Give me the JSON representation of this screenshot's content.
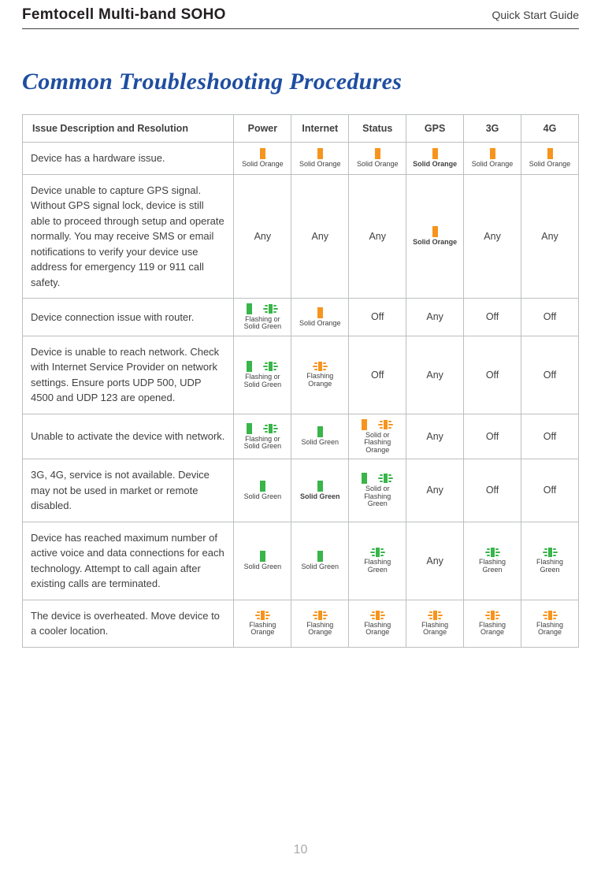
{
  "header": {
    "title": "Femtocell Multi-band SOHO",
    "sub": "Quick Start Guide"
  },
  "page_title": "Common Troubleshooting Procedures",
  "page_number": "10",
  "colors": {
    "orange": "#f7941e",
    "green": "#39b54a"
  },
  "columns": [
    "Issue Description and Resolution",
    "Power",
    "Internet",
    "Status",
    "GPS",
    "3G",
    "4G"
  ],
  "rows": [
    {
      "desc": "Device has a hardware issue.",
      "cells": [
        {
          "type": "solid",
          "color": "orange",
          "label": "Solid Orange"
        },
        {
          "type": "solid",
          "color": "orange",
          "label": "Solid Orange"
        },
        {
          "type": "solid",
          "color": "orange",
          "label": "Solid Orange"
        },
        {
          "type": "solid",
          "color": "orange",
          "label": "Solid Orange",
          "bold": true
        },
        {
          "type": "solid",
          "color": "orange",
          "label": "Solid Orange"
        },
        {
          "type": "solid",
          "color": "orange",
          "label": "Solid Orange"
        }
      ]
    },
    {
      "desc": "Device unable to capture GPS signal. Without GPS signal lock, device is still able to proceed through setup and operate normally. You may receive SMS or email notifications to verify your device use address for emergency 119 or 911 call safety.",
      "cells": [
        {
          "type": "text",
          "label": "Any"
        },
        {
          "type": "text",
          "label": "Any"
        },
        {
          "type": "text",
          "label": "Any"
        },
        {
          "type": "solid",
          "color": "orange",
          "label": "Solid Orange",
          "bold": true
        },
        {
          "type": "text",
          "label": "Any"
        },
        {
          "type": "text",
          "label": "Any"
        }
      ]
    },
    {
      "desc": "Device connection issue with router.",
      "cells": [
        {
          "type": "solid-or-flash",
          "color": "green",
          "label": "Flashing or\nSolid Green"
        },
        {
          "type": "solid",
          "color": "orange",
          "label": "Solid Orange"
        },
        {
          "type": "text",
          "label": "Off"
        },
        {
          "type": "text",
          "label": "Any"
        },
        {
          "type": "text",
          "label": "Off"
        },
        {
          "type": "text",
          "label": "Off"
        }
      ]
    },
    {
      "desc": "Device is unable to reach network. Check with Internet Service Provider on network settings. Ensure ports UDP 500, UDP 4500 and UDP 123 are opened.",
      "cells": [
        {
          "type": "solid-or-flash",
          "color": "green",
          "label": "Flashing or\nSolid Green"
        },
        {
          "type": "flash",
          "color": "orange",
          "label": "Flashing\nOrange"
        },
        {
          "type": "text",
          "label": "Off"
        },
        {
          "type": "text",
          "label": "Any"
        },
        {
          "type": "text",
          "label": "Off"
        },
        {
          "type": "text",
          "label": "Off"
        }
      ]
    },
    {
      "desc": "Unable to activate the device with  network.",
      "cells": [
        {
          "type": "solid-or-flash",
          "color": "green",
          "label": "Flashing or\nSolid Green"
        },
        {
          "type": "solid",
          "color": "green",
          "label": "Solid Green"
        },
        {
          "type": "solid-or-flash",
          "color": "orange",
          "label": "Solid  or\nFlashing\nOrange"
        },
        {
          "type": "text",
          "label": "Any"
        },
        {
          "type": "text",
          "label": "Off"
        },
        {
          "type": "text",
          "label": "Off"
        }
      ]
    },
    {
      "desc": "3G, 4G, service is not available. Device may not be used in market or remote disabled.",
      "cells": [
        {
          "type": "solid",
          "color": "green",
          "label": "Solid Green"
        },
        {
          "type": "solid",
          "color": "green",
          "label": "Solid Green",
          "bold": true
        },
        {
          "type": "solid-or-flash",
          "color": "green",
          "label": "Solid  or\nFlashing\nGreen"
        },
        {
          "type": "text",
          "label": "Any"
        },
        {
          "type": "text",
          "label": "Off"
        },
        {
          "type": "text",
          "label": "Off"
        }
      ]
    },
    {
      "desc": "Device has reached maximum number of active voice and data connections for each technology. Attempt to call again after existing  calls are terminated.",
      "cells": [
        {
          "type": "solid",
          "color": "green",
          "label": "Solid Green"
        },
        {
          "type": "solid",
          "color": "green",
          "label": "Solid Green"
        },
        {
          "type": "flash",
          "color": "green",
          "label": "Flashing\nGreen"
        },
        {
          "type": "text",
          "label": "Any"
        },
        {
          "type": "flash",
          "color": "green",
          "label": "Flashing\nGreen"
        },
        {
          "type": "flash",
          "color": "green",
          "label": "Flashing\nGreen"
        }
      ]
    },
    {
      "desc": "The device is overheated. Move device to a cooler location.",
      "cells": [
        {
          "type": "flash",
          "color": "orange",
          "label": "Flashing\nOrange"
        },
        {
          "type": "flash",
          "color": "orange",
          "label": "Flashing\nOrange"
        },
        {
          "type": "flash",
          "color": "orange",
          "label": "Flashing\nOrange"
        },
        {
          "type": "flash",
          "color": "orange",
          "label": "Flashing\nOrange"
        },
        {
          "type": "flash",
          "color": "orange",
          "label": "Flashing\nOrange"
        },
        {
          "type": "flash",
          "color": "orange",
          "label": "Flashing\nOrange"
        }
      ]
    }
  ]
}
